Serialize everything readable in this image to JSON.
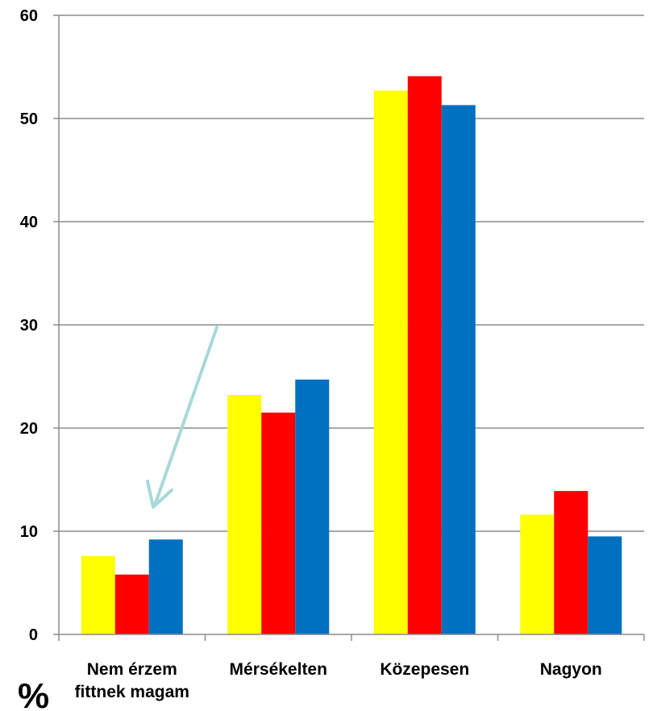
{
  "chart_data": {
    "type": "bar",
    "categories": [
      [
        "Nem érzem",
        "fittnek magam"
      ],
      [
        "Mérsékelten"
      ],
      [
        "Közepesen"
      ],
      [
        "Nagyon"
      ]
    ],
    "series": [
      {
        "color": "#ffff00",
        "values": [
          7.6,
          23.2,
          52.7,
          11.6
        ]
      },
      {
        "color": "#ff0000",
        "values": [
          5.8,
          21.5,
          54.1,
          13.9
        ]
      },
      {
        "color": "#0070c0",
        "values": [
          9.2,
          24.7,
          51.3,
          9.5
        ]
      }
    ],
    "ylim": [
      0,
      60
    ],
    "yticks": [
      0,
      10,
      20,
      30,
      40,
      50,
      60
    ],
    "grid": true,
    "unit_label": "%",
    "annotation": {
      "type": "arrow",
      "color": "#a8d8d8",
      "points_to": "Nem érzem fittnek magam"
    }
  }
}
